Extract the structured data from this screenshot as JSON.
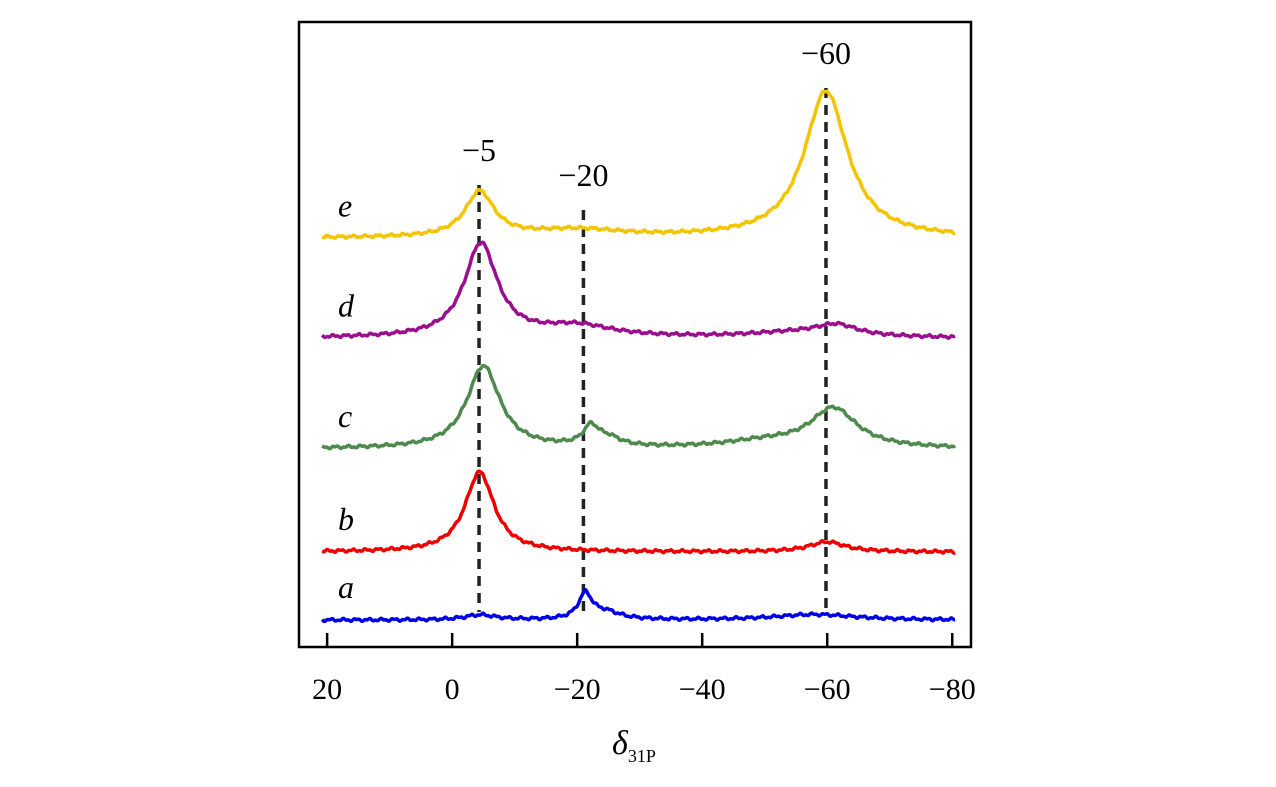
{
  "chart_data": {
    "type": "line",
    "title": "",
    "xlabel": "δ",
    "xlabel_sub": "31P",
    "ylabel": "",
    "xlim": [
      24.5,
      -83
    ],
    "ylim": [
      0,
      100
    ],
    "x_ticks": [
      20,
      0,
      -20,
      -40,
      -60,
      -80
    ],
    "x_tick_labels": [
      "20",
      "0",
      "−20",
      "−40",
      "−60",
      "−80"
    ],
    "x_range": [
      20.8,
      -80.5
    ],
    "annotations": [
      {
        "x": -4.3,
        "label": "−5"
      },
      {
        "x": -21,
        "label": "−20"
      },
      {
        "x": -59.8,
        "label": "−60"
      }
    ],
    "series": [
      {
        "name": "a",
        "color": "#0000e6",
        "baseline": 4.3,
        "peaks": [
          [
            -4.5,
            0.8,
            3
          ],
          [
            -21.3,
            4,
            1.3
          ],
          [
            -24.5,
            1.2,
            3
          ],
          [
            -58,
            0.9,
            8
          ]
        ]
      },
      {
        "name": "b",
        "color": "#ee0000",
        "baseline": 15.2,
        "peaks": [
          [
            -4.4,
            12.8,
            2.8
          ],
          [
            -60,
            1.6,
            3.5
          ]
        ]
      },
      {
        "name": "c",
        "color": "#4e8a4e",
        "baseline": 31.7,
        "peaks": [
          [
            -5,
            13.2,
            3.2
          ],
          [
            -22.2,
            3,
            1.5
          ],
          [
            -25,
            1.3,
            2.5
          ],
          [
            -61,
            6.3,
            4.5
          ],
          [
            -50,
            1,
            8
          ]
        ]
      },
      {
        "name": "d",
        "color": "#9b0e8e",
        "baseline": 49.4,
        "peaks": [
          [
            -4.6,
            15,
            3.2
          ],
          [
            -20,
            1.8,
            7
          ],
          [
            -61.5,
            1.7,
            4
          ],
          [
            -55,
            0.8,
            10
          ]
        ]
      },
      {
        "name": "e",
        "color": "#f5c400",
        "baseline": 65.4,
        "peaks": [
          [
            -4.4,
            7.2,
            2.8
          ],
          [
            -20,
            1.2,
            9
          ],
          [
            -59.8,
            23.5,
            4.2
          ]
        ]
      }
    ]
  }
}
